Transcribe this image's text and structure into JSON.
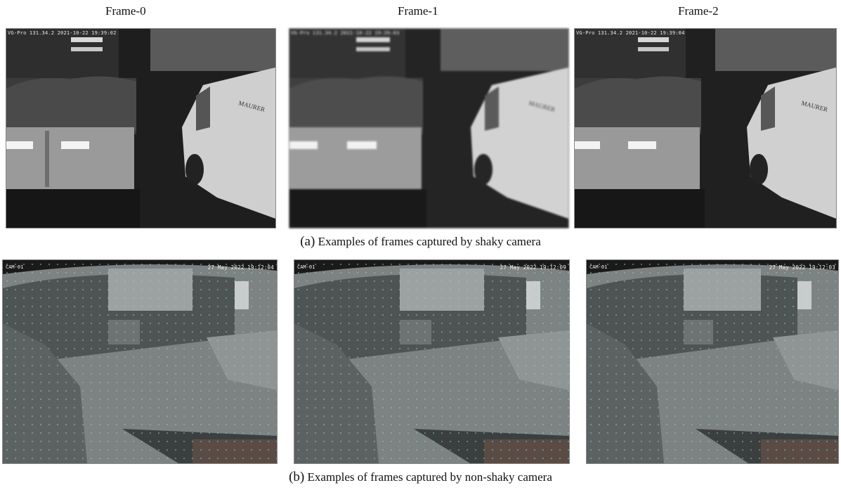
{
  "column_labels": [
    "Frame-0",
    "Frame-1",
    "Frame-2"
  ],
  "caption_a": {
    "tag": "(a)",
    "text": "Examples of frames captured by shaky camera"
  },
  "caption_b": {
    "tag": "(b)",
    "text": "Examples of frames captured by non-shaky camera"
  },
  "shaky_frames": [
    {
      "timestamp": "VG-Pro 131.34.2  2021-10-22 19:39:02",
      "van_text": "MAURER"
    },
    {
      "timestamp": "VG-Pro 131.34.2  2021-10-22 19:39:03",
      "van_text": "MAURER"
    },
    {
      "timestamp": "VG-Pro 131.34.2  2021-10-22 19:39:04",
      "van_text": "MAURER"
    }
  ],
  "nonshaky_frames": [
    {
      "camera_id": "CAM-01",
      "date": "27 May 2022",
      "time": "19:12:04"
    },
    {
      "camera_id": "CAM-01",
      "date": "27 May 2022",
      "time": "19:12:09"
    },
    {
      "camera_id": "CAM-01",
      "date": "27 May 2022",
      "time": "19:12:03"
    }
  ]
}
